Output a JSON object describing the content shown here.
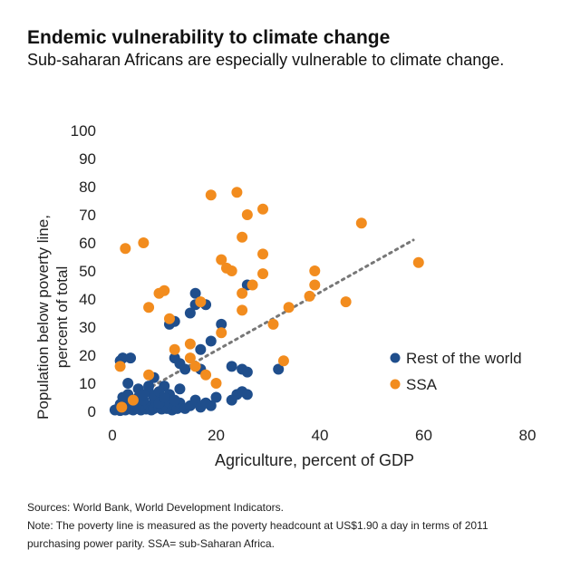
{
  "header": {
    "title": "Endemic vulnerability to climate change",
    "subtitle": "Sub-saharan Africans are especially vulnerable to climate change."
  },
  "footer": {
    "sources": "Sources: World Bank, World Development Indicators.",
    "note_line1": "Note: The poverty line is measured as the poverty headcount at US$1.90 a day in terms of 2011",
    "note_line2": "purchasing power parity. SSA= sub-Saharan Africa."
  },
  "chart_data": {
    "type": "scatter",
    "xlabel": "Agriculture, percent of GDP",
    "ylabel_line1": "Population below poverty line,",
    "ylabel_line2": "percent of total",
    "xlim": [
      0,
      80
    ],
    "ylim": [
      0,
      100
    ],
    "xticks": [
      "0",
      "20",
      "40",
      "60",
      "80"
    ],
    "yticks": [
      "0",
      "10",
      "20",
      "30",
      "40",
      "50",
      "60",
      "70",
      "80",
      "90",
      "100"
    ],
    "grid": false,
    "legend_position": "right",
    "trendline": {
      "style": "dotted",
      "color": "#777777",
      "from": [
        2,
        3
      ],
      "to": [
        58,
        61
      ]
    },
    "series": [
      {
        "name": "Rest of the world",
        "color": "#1f4e8c",
        "points": [
          [
            0.5,
            0.5
          ],
          [
            1,
            0.8
          ],
          [
            1.5,
            0.3
          ],
          [
            2,
            1
          ],
          [
            2.5,
            0.5
          ],
          [
            3,
            1.5
          ],
          [
            3.5,
            0.8
          ],
          [
            4,
            0.5
          ],
          [
            4.5,
            2
          ],
          [
            5,
            1
          ],
          [
            5.5,
            0.5
          ],
          [
            6,
            1.5
          ],
          [
            6.5,
            0.8
          ],
          [
            7,
            2
          ],
          [
            7.5,
            0.5
          ],
          [
            8,
            1
          ],
          [
            8.5,
            3
          ],
          [
            9,
            1.5
          ],
          [
            9.5,
            0.8
          ],
          [
            10,
            2
          ],
          [
            10.5,
            1
          ],
          [
            11,
            3
          ],
          [
            11.5,
            0.5
          ],
          [
            12,
            2
          ],
          [
            12.5,
            1
          ],
          [
            13,
            3
          ],
          [
            14,
            1
          ],
          [
            15,
            2
          ],
          [
            16,
            4
          ],
          [
            17,
            1.5
          ],
          [
            18,
            3
          ],
          [
            19,
            2
          ],
          [
            20,
            5
          ],
          [
            1.5,
            2.5
          ],
          [
            2.5,
            4
          ],
          [
            3,
            6
          ],
          [
            4,
            3
          ],
          [
            5,
            5
          ],
          [
            6,
            4
          ],
          [
            7,
            7
          ],
          [
            8,
            5
          ],
          [
            9,
            3
          ],
          [
            10,
            9
          ],
          [
            11,
            6
          ],
          [
            12,
            4
          ],
          [
            13,
            8
          ],
          [
            2,
            5
          ],
          [
            1.5,
            18
          ],
          [
            2,
            19
          ],
          [
            3.5,
            19
          ],
          [
            3,
            10
          ],
          [
            5,
            8
          ],
          [
            6,
            6
          ],
          [
            7,
            9
          ],
          [
            8,
            12
          ],
          [
            9,
            7
          ],
          [
            10,
            5
          ],
          [
            11,
            31
          ],
          [
            12,
            32
          ],
          [
            12,
            19
          ],
          [
            13,
            17
          ],
          [
            14,
            15
          ],
          [
            15,
            35
          ],
          [
            16,
            42
          ],
          [
            17,
            22
          ],
          [
            16,
            38
          ],
          [
            17,
            15
          ],
          [
            18,
            38
          ],
          [
            19,
            25
          ],
          [
            21,
            31
          ],
          [
            23,
            16
          ],
          [
            25,
            15
          ],
          [
            26,
            14
          ],
          [
            24,
            6
          ],
          [
            25,
            7
          ],
          [
            26,
            6
          ],
          [
            23,
            4
          ],
          [
            26,
            45
          ],
          [
            32,
            15
          ]
        ]
      },
      {
        "name": "SSA",
        "color": "#f28c1e",
        "points": [
          [
            1.5,
            16
          ],
          [
            1.8,
            1.5
          ],
          [
            2.5,
            58
          ],
          [
            4,
            4
          ],
          [
            6,
            60
          ],
          [
            7,
            37
          ],
          [
            7,
            13
          ],
          [
            9,
            42
          ],
          [
            10,
            43
          ],
          [
            11,
            33
          ],
          [
            12,
            22
          ],
          [
            15,
            24
          ],
          [
            15,
            19
          ],
          [
            16,
            16
          ],
          [
            17,
            39
          ],
          [
            18,
            13
          ],
          [
            19,
            77
          ],
          [
            20,
            10
          ],
          [
            21,
            28
          ],
          [
            21,
            54
          ],
          [
            22,
            51
          ],
          [
            23,
            50
          ],
          [
            24,
            78
          ],
          [
            25,
            62
          ],
          [
            25,
            36
          ],
          [
            25,
            42
          ],
          [
            26,
            70
          ],
          [
            27,
            45
          ],
          [
            29,
            72
          ],
          [
            29,
            49
          ],
          [
            29,
            56
          ],
          [
            31,
            31
          ],
          [
            33,
            18
          ],
          [
            34,
            37
          ],
          [
            38,
            41
          ],
          [
            39,
            45
          ],
          [
            39,
            50
          ],
          [
            45,
            39
          ],
          [
            48,
            67
          ],
          [
            59,
            53
          ]
        ]
      }
    ]
  }
}
